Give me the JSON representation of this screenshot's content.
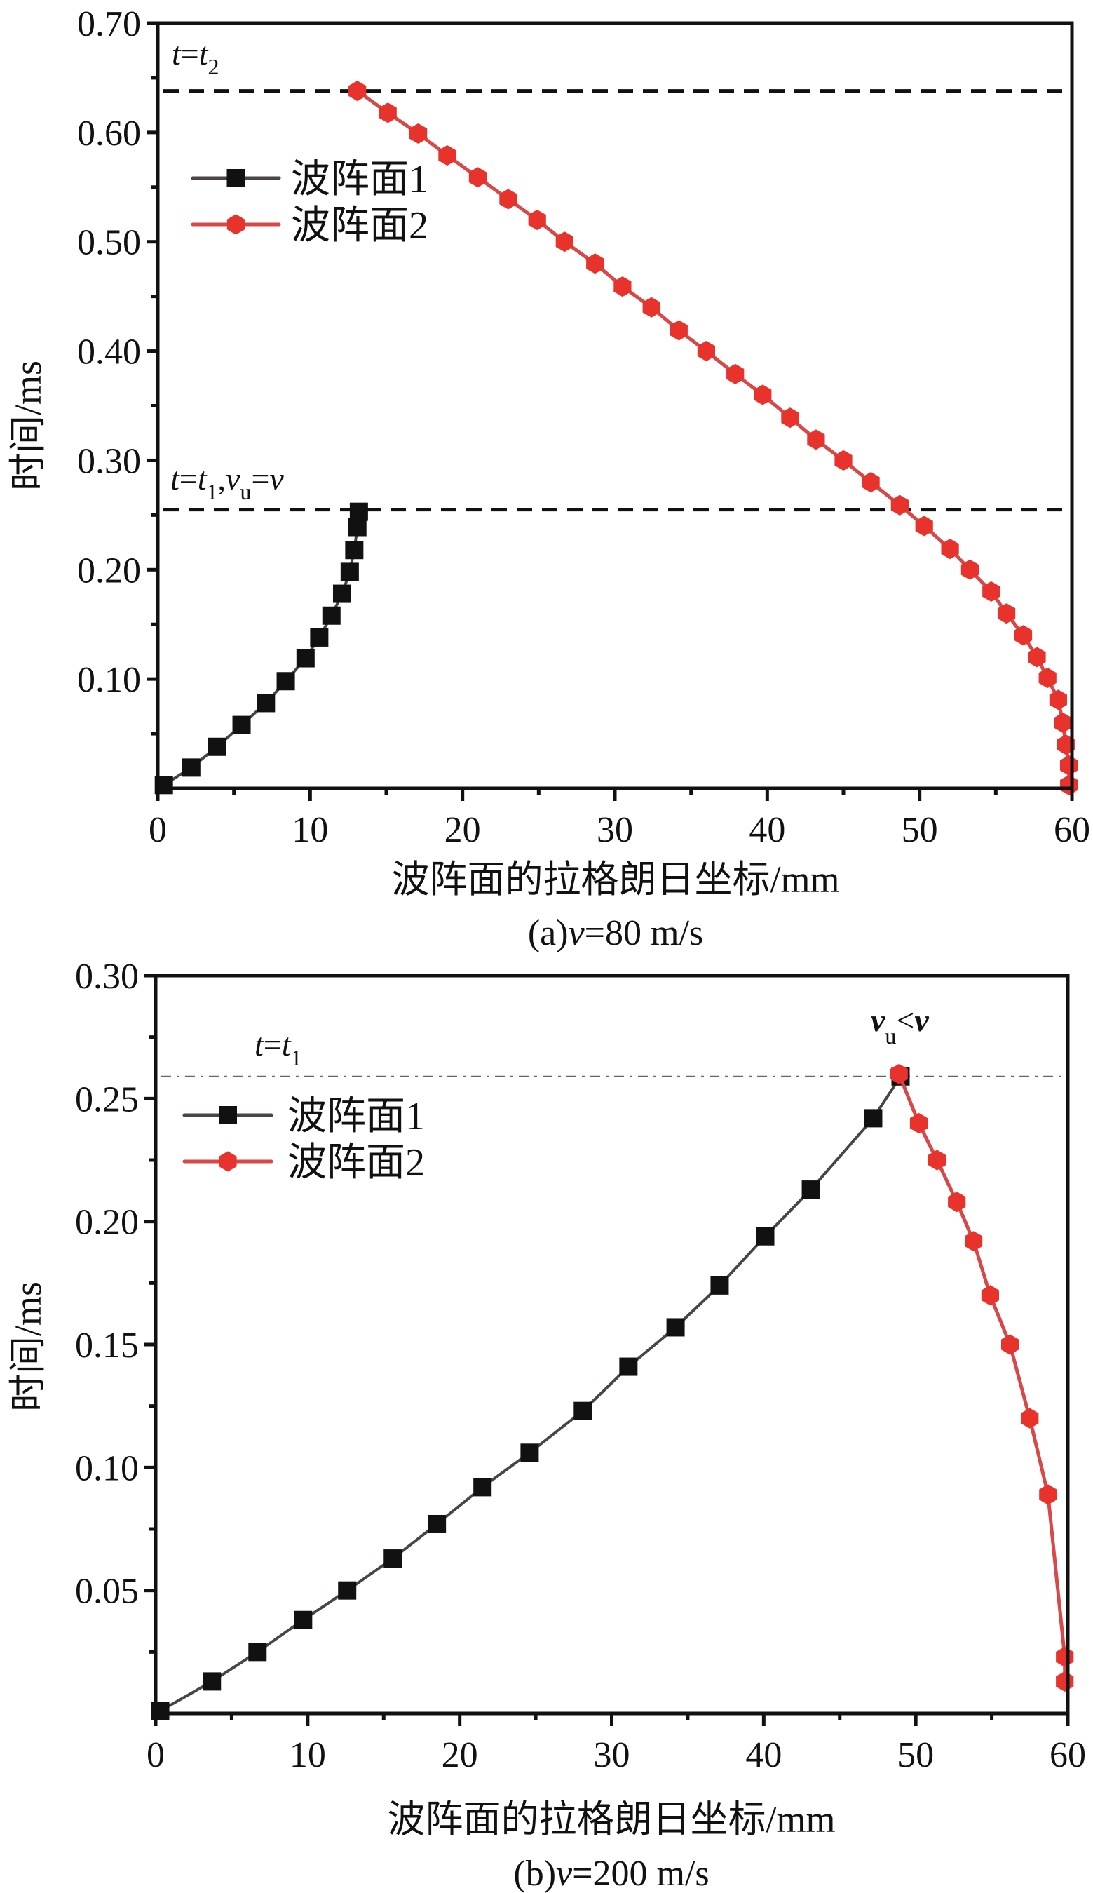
{
  "figure": {
    "panels": [
      "a",
      "b"
    ]
  },
  "colors": {
    "front1_line": "#4a4444",
    "front1_marker": "#111111",
    "front2_line": "#d84848",
    "front2_marker": "#e8322c",
    "axis": "#111111",
    "ref_line_a": "#111111",
    "ref_line_b": "#666666"
  },
  "chart_data": [
    {
      "type": "line",
      "panel": "a",
      "caption": "(a)v=80 m/s",
      "caption_prefix": "(a)",
      "caption_var": "v",
      "caption_rest": "=80 m/s",
      "xlabel": "波阵面的拉格朗日坐标/mm",
      "ylabel": "时间/ms",
      "xlim": [
        0,
        60
      ],
      "ylim": [
        0,
        0.7
      ],
      "xticks": [
        0,
        10,
        20,
        30,
        40,
        50,
        60
      ],
      "xtick_labels": [
        "0",
        "10",
        "20",
        "30",
        "40",
        "50",
        "60"
      ],
      "xminor": [
        5,
        15,
        25,
        35,
        45,
        55
      ],
      "yticks": [
        0.1,
        0.2,
        0.3,
        0.4,
        0.5,
        0.6,
        0.7
      ],
      "ytick_labels": [
        "0.10",
        "0.20",
        "0.30",
        "0.40",
        "0.50",
        "0.60",
        "0.70"
      ],
      "yminor": [
        0.05,
        0.15,
        0.25,
        0.35,
        0.45,
        0.55,
        0.65
      ],
      "grid": false,
      "legend": {
        "placement": "upper-left",
        "entries": [
          "波阵面1",
          "波阵面2"
        ]
      },
      "reference_lines": [
        {
          "y": 0.638,
          "style": "dashed",
          "label": "t=t2",
          "label_parts": [
            "t",
            "=",
            "t",
            "2"
          ]
        },
        {
          "y": 0.255,
          "style": "dashed",
          "label": "t=t1,vu=v",
          "label_parts": [
            "t",
            "=",
            "t",
            "1",
            ",",
            "v",
            "u",
            "=",
            "v"
          ]
        }
      ],
      "series": [
        {
          "name": "波阵面1",
          "marker": "square",
          "x": [
            0.4,
            2.2,
            3.9,
            5.5,
            7.1,
            8.4,
            9.7,
            10.6,
            11.4,
            12.1,
            12.6,
            12.9,
            13.1,
            13.2
          ],
          "y": [
            0.003,
            0.019,
            0.038,
            0.058,
            0.078,
            0.098,
            0.119,
            0.138,
            0.158,
            0.178,
            0.198,
            0.218,
            0.239,
            0.253
          ]
        },
        {
          "name": "波阵面2",
          "marker": "pentagon",
          "x": [
            13.1,
            15.1,
            17.1,
            19.0,
            21.0,
            23.0,
            24.9,
            26.7,
            28.7,
            30.5,
            32.4,
            34.2,
            36.0,
            37.9,
            39.7,
            41.5,
            43.2,
            45.0,
            46.8,
            48.7,
            50.3,
            52.0,
            53.3,
            54.7,
            55.7,
            56.8,
            57.7,
            58.4,
            59.1,
            59.4,
            59.6,
            59.8,
            59.8
          ],
          "y": [
            0.638,
            0.618,
            0.599,
            0.579,
            0.559,
            0.539,
            0.52,
            0.5,
            0.48,
            0.459,
            0.44,
            0.419,
            0.4,
            0.379,
            0.36,
            0.339,
            0.319,
            0.3,
            0.28,
            0.259,
            0.24,
            0.219,
            0.2,
            0.18,
            0.16,
            0.14,
            0.12,
            0.101,
            0.081,
            0.06,
            0.04,
            0.021,
            0.003
          ]
        }
      ]
    },
    {
      "type": "line",
      "panel": "b",
      "caption": "(b)v=200 m/s",
      "caption_prefix": "(b)",
      "caption_var": "v",
      "caption_rest": "=200 m/s",
      "xlabel": "波阵面的拉格朗日坐标/mm",
      "ylabel": "时间/ms",
      "xlim": [
        0,
        60
      ],
      "ylim": [
        0,
        0.3
      ],
      "xticks": [
        0,
        10,
        20,
        30,
        40,
        50,
        60
      ],
      "xtick_labels": [
        "0",
        "10",
        "20",
        "30",
        "40",
        "50",
        "60"
      ],
      "xminor": [
        5,
        15,
        25,
        35,
        45,
        55
      ],
      "yticks": [
        0.05,
        0.1,
        0.15,
        0.2,
        0.25,
        0.3
      ],
      "ytick_labels": [
        "0.05",
        "0.10",
        "0.15",
        "0.20",
        "0.25",
        "0.30"
      ],
      "yminor": [
        0.025,
        0.075,
        0.125,
        0.175,
        0.225,
        0.275
      ],
      "grid": false,
      "legend": {
        "placement": "upper-left",
        "entries": [
          "波阵面1",
          "波阵面2"
        ]
      },
      "reference_lines": [
        {
          "y": 0.259,
          "style": "dash-dot",
          "label": "t=t1",
          "label_parts": [
            "t",
            "=",
            "t",
            "1"
          ]
        }
      ],
      "annotations": [
        {
          "text": "vu<v",
          "parts": [
            "v",
            "u",
            "<",
            "v"
          ],
          "x": 49.0,
          "y": 0.275
        }
      ],
      "series": [
        {
          "name": "波阵面1",
          "marker": "square",
          "x": [
            0.3,
            3.7,
            6.7,
            9.7,
            12.6,
            15.6,
            18.5,
            21.5,
            24.6,
            28.1,
            31.1,
            34.2,
            37.1,
            40.1,
            43.1,
            47.2,
            49.0
          ],
          "y": [
            0.001,
            0.013,
            0.025,
            0.038,
            0.05,
            0.063,
            0.077,
            0.092,
            0.106,
            0.123,
            0.141,
            0.157,
            0.174,
            0.194,
            0.213,
            0.242,
            0.259
          ]
        },
        {
          "name": "波阵面2",
          "marker": "pentagon",
          "x": [
            48.9,
            50.2,
            51.4,
            52.7,
            53.8,
            54.9,
            56.2,
            57.5,
            58.7,
            59.8,
            59.8
          ],
          "y": [
            0.26,
            0.24,
            0.225,
            0.208,
            0.192,
            0.17,
            0.15,
            0.12,
            0.089,
            0.023,
            0.013
          ]
        }
      ]
    }
  ]
}
